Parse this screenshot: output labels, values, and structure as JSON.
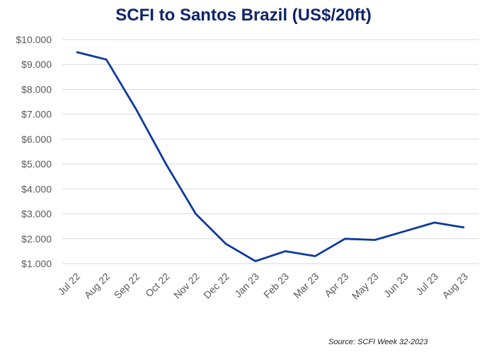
{
  "chart_data": {
    "type": "line",
    "title": "SCFI to Santos Brazil (US$/20ft)",
    "xlabel": "",
    "ylabel": "",
    "ylim": [
      1000,
      10000
    ],
    "grid": true,
    "legend": "none",
    "yticks": [
      1000,
      2000,
      3000,
      4000,
      5000,
      6000,
      7000,
      8000,
      9000,
      10000
    ],
    "ytick_labels": [
      "$1.000",
      "$2.000",
      "$3.000",
      "$4.000",
      "$5.000",
      "$6.000",
      "$7.000",
      "$8.000",
      "$9.000",
      "$10.000"
    ],
    "categories": [
      "Jul 22",
      "Aug 22",
      "Sep 22",
      "Oct 22",
      "Nov 22",
      "Dec 22",
      "Jan 23",
      "Feb 23",
      "Mar 23",
      "Apr 23",
      "May 23",
      "Jun 23",
      "Jul 23",
      "Aug 23"
    ],
    "series": [
      {
        "name": "SCFI to Santos Brazil",
        "color": "#0b3a9e",
        "values": [
          9500,
          9200,
          7200,
          5000,
          3000,
          1800,
          1100,
          1500,
          1300,
          2000,
          1950,
          2300,
          2650,
          2450
        ]
      }
    ],
    "source": "Source: SCFI Week 32-2023"
  }
}
